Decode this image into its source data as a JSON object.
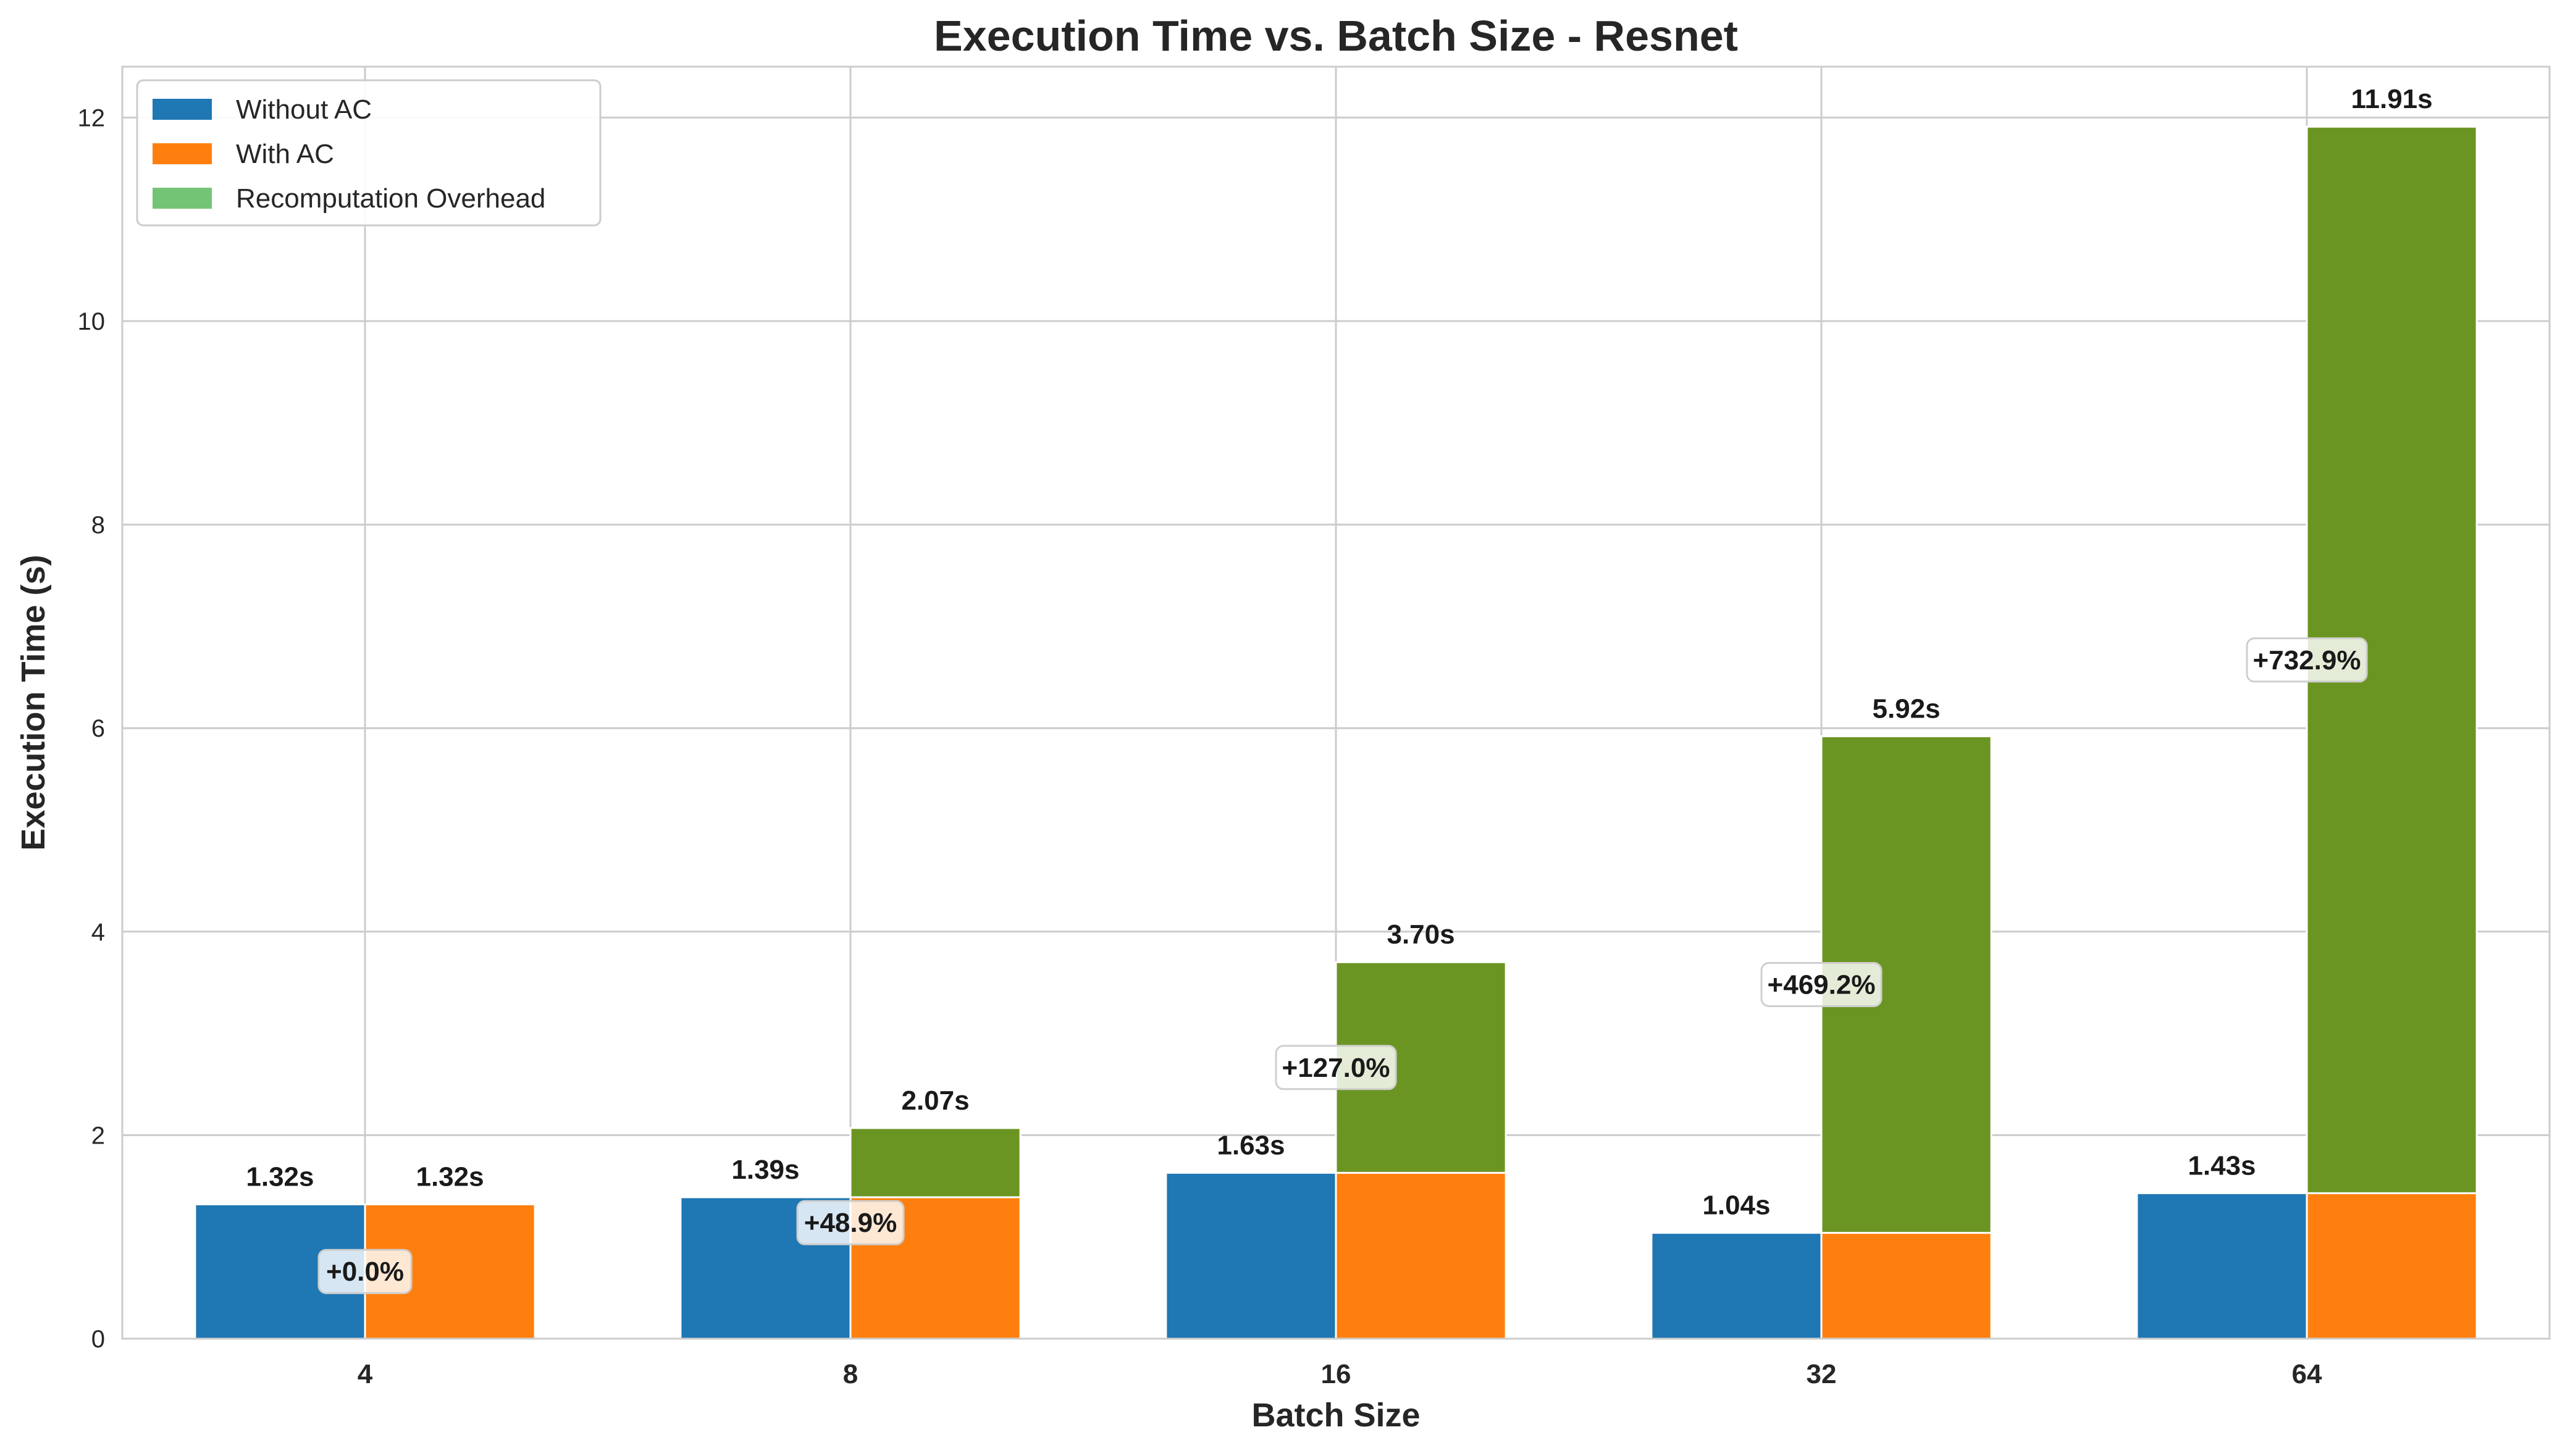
{
  "chart_data": {
    "type": "bar",
    "title": "Execution Time vs. Batch Size - Resnet",
    "xlabel": "Batch Size",
    "ylabel": "Execution Time (s)",
    "ylim": [
      0,
      12.5
    ],
    "yticks": [
      0,
      2,
      4,
      6,
      8,
      10,
      12
    ],
    "grid": true,
    "legend_position": "top-left",
    "categories": [
      "4",
      "8",
      "16",
      "32",
      "64"
    ],
    "series": [
      {
        "name": "Without AC",
        "color": "#1f77b4",
        "values": [
          1.32,
          1.39,
          1.63,
          1.04,
          1.43
        ]
      },
      {
        "name": "With AC",
        "color": "#ff7f0e",
        "values": [
          1.32,
          1.39,
          1.63,
          1.04,
          1.43
        ]
      },
      {
        "name": "Recomputation Overhead",
        "color": "#6b9523",
        "legend_color": "#74c476",
        "values": [
          0.0,
          0.68,
          2.07,
          4.88,
          10.48
        ]
      }
    ],
    "with_ac_totals": [
      1.32,
      2.07,
      3.7,
      5.92,
      11.91
    ],
    "without_ac_labels": [
      "1.32s",
      "1.39s",
      "1.63s",
      "1.04s",
      "1.43s"
    ],
    "with_ac_labels": [
      "1.32s",
      "2.07s",
      "3.70s",
      "5.92s",
      "11.91s"
    ],
    "overhead_percent_labels": [
      "+0.0%",
      "+48.9%",
      "+127.0%",
      "+469.2%",
      "+732.9%"
    ]
  }
}
